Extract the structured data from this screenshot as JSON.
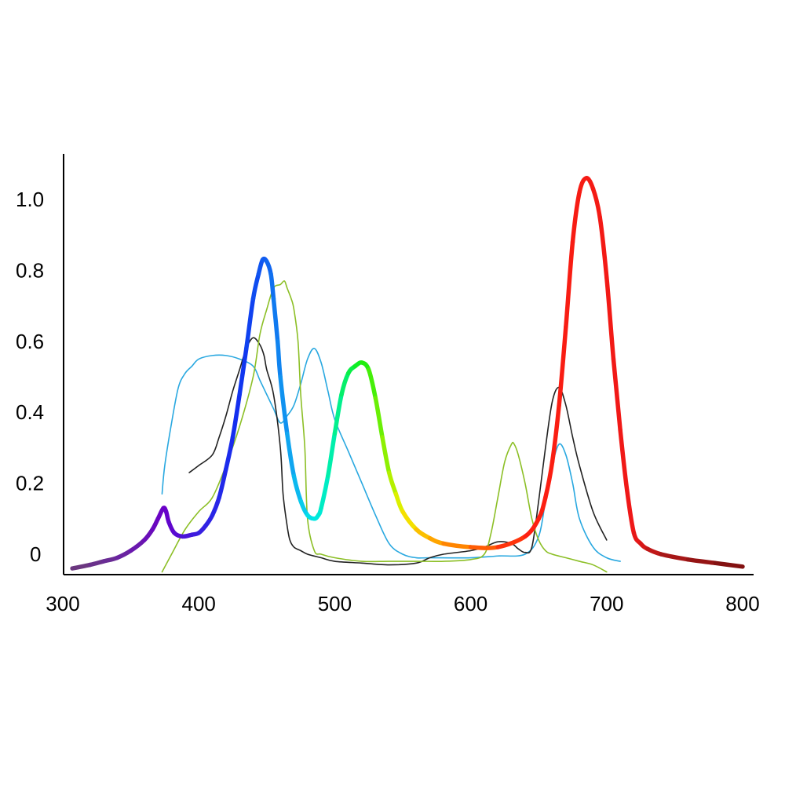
{
  "chart_data": {
    "type": "line",
    "title": "",
    "xlabel": "",
    "ylabel": "",
    "xlim": [
      300,
      800
    ],
    "ylim": [
      -0.05,
      1.12
    ],
    "x_ticks": [
      300,
      400,
      500,
      600,
      700,
      800
    ],
    "x_tick_labels": [
      "300",
      "400",
      "500",
      "600",
      "700",
      "800"
    ],
    "y_ticks": [
      0,
      0.2,
      0.4,
      0.6,
      0.8,
      1.0
    ],
    "y_tick_labels": [
      "0",
      "0.2",
      "0.4",
      "0.6",
      "0.8",
      "1.0"
    ],
    "grid": false,
    "legend": "none",
    "spectrum_colors": [
      {
        "x": 307,
        "color": "#6b3a7a"
      },
      {
        "x": 340,
        "color": "#6a2a9a"
      },
      {
        "x": 375,
        "color": "#6a00c8"
      },
      {
        "x": 400,
        "color": "#3a1ee0"
      },
      {
        "x": 430,
        "color": "#1030f0"
      },
      {
        "x": 450,
        "color": "#1060f0"
      },
      {
        "x": 470,
        "color": "#10b0f0"
      },
      {
        "x": 485,
        "color": "#00e8e8"
      },
      {
        "x": 500,
        "color": "#00f0a0"
      },
      {
        "x": 520,
        "color": "#10ee10"
      },
      {
        "x": 540,
        "color": "#a0f000"
      },
      {
        "x": 550,
        "color": "#f0f000"
      },
      {
        "x": 570,
        "color": "#ffb000"
      },
      {
        "x": 600,
        "color": "#ff7000"
      },
      {
        "x": 640,
        "color": "#ff2010"
      },
      {
        "x": 720,
        "color": "#ee1818"
      },
      {
        "x": 740,
        "color": "#b01818"
      },
      {
        "x": 800,
        "color": "#7a1010"
      }
    ],
    "series": [
      {
        "color": "#29a8e0",
        "x": [
          373,
          375,
          380,
          385,
          390,
          395,
          400,
          410,
          420,
          430,
          440,
          445,
          450,
          455,
          460,
          465,
          470,
          475,
          480,
          485,
          490,
          495,
          500,
          510,
          520,
          530,
          540,
          550,
          560,
          570,
          600,
          620,
          640,
          650,
          655,
          660,
          665,
          670,
          675,
          680,
          690,
          700,
          710
        ],
        "y": [
          0.17,
          0.25,
          0.37,
          0.47,
          0.51,
          0.53,
          0.55,
          0.56,
          0.56,
          0.55,
          0.53,
          0.49,
          0.45,
          0.41,
          0.37,
          0.39,
          0.42,
          0.48,
          0.55,
          0.58,
          0.54,
          0.46,
          0.38,
          0.29,
          0.2,
          0.11,
          0.03,
          0.0,
          -0.01,
          -0.01,
          -0.01,
          -0.005,
          0.0,
          0.05,
          0.15,
          0.25,
          0.31,
          0.28,
          0.2,
          0.1,
          0.02,
          -0.01,
          -0.02
        ]
      },
      {
        "color": "#222222",
        "x": [
          393,
          400,
          410,
          415,
          420,
          425,
          430,
          435,
          440,
          445,
          448,
          450,
          455,
          460,
          462,
          465,
          467,
          470,
          475,
          480,
          490,
          500,
          520,
          540,
          560,
          570,
          580,
          600,
          610,
          620,
          630,
          635,
          640,
          645,
          650,
          655,
          660,
          665,
          670,
          675,
          680,
          690,
          700
        ],
        "y": [
          0.23,
          0.25,
          0.28,
          0.33,
          0.39,
          0.46,
          0.52,
          0.58,
          0.61,
          0.59,
          0.56,
          0.52,
          0.45,
          0.3,
          0.17,
          0.08,
          0.04,
          0.02,
          0.01,
          0.0,
          -0.01,
          -0.02,
          -0.025,
          -0.03,
          -0.025,
          -0.01,
          0.0,
          0.01,
          0.02,
          0.035,
          0.03,
          0.015,
          0.005,
          0.02,
          0.15,
          0.3,
          0.43,
          0.47,
          0.42,
          0.33,
          0.25,
          0.12,
          0.04
        ]
      },
      {
        "color": "#8cbf26",
        "x": [
          373,
          380,
          390,
          400,
          410,
          420,
          430,
          440,
          445,
          450,
          455,
          460,
          463,
          465,
          468,
          470,
          473,
          475,
          478,
          480,
          485,
          490,
          500,
          520,
          540,
          560,
          580,
          600,
          610,
          615,
          620,
          625,
          630,
          632,
          635,
          640,
          645,
          650,
          655,
          660,
          670,
          680,
          690,
          700
        ],
        "y": [
          -0.05,
          0.0,
          0.07,
          0.12,
          0.16,
          0.25,
          0.36,
          0.5,
          0.62,
          0.69,
          0.75,
          0.76,
          0.77,
          0.75,
          0.72,
          0.69,
          0.6,
          0.45,
          0.3,
          0.1,
          0.01,
          0.0,
          -0.01,
          -0.02,
          -0.02,
          -0.02,
          -0.02,
          -0.015,
          0.0,
          0.06,
          0.16,
          0.26,
          0.31,
          0.31,
          0.28,
          0.2,
          0.1,
          0.04,
          0.01,
          0.0,
          -0.01,
          -0.02,
          -0.03,
          -0.05
        ]
      }
    ],
    "spectrum_series": {
      "x": [
        307,
        320,
        330,
        340,
        350,
        360,
        366,
        370,
        374,
        376,
        378,
        382,
        388,
        395,
        400,
        405,
        410,
        415,
        420,
        425,
        430,
        435,
        440,
        444,
        447,
        450,
        453,
        455,
        458,
        460,
        465,
        470,
        475,
        480,
        485,
        488,
        490,
        495,
        500,
        505,
        510,
        515,
        520,
        525,
        530,
        535,
        540,
        545,
        550,
        560,
        570,
        580,
        600,
        620,
        640,
        650,
        655,
        660,
        665,
        670,
        675,
        680,
        685,
        690,
        695,
        700,
        705,
        710,
        715,
        720,
        725,
        730,
        740,
        760,
        780,
        800
      ],
      "y": [
        -0.04,
        -0.03,
        -0.02,
        -0.01,
        0.01,
        0.04,
        0.07,
        0.1,
        0.13,
        0.12,
        0.09,
        0.06,
        0.05,
        0.055,
        0.06,
        0.08,
        0.11,
        0.16,
        0.24,
        0.33,
        0.45,
        0.58,
        0.72,
        0.79,
        0.83,
        0.825,
        0.79,
        0.72,
        0.6,
        0.5,
        0.34,
        0.22,
        0.15,
        0.11,
        0.1,
        0.11,
        0.13,
        0.22,
        0.34,
        0.45,
        0.51,
        0.53,
        0.54,
        0.52,
        0.44,
        0.33,
        0.23,
        0.17,
        0.12,
        0.07,
        0.045,
        0.03,
        0.02,
        0.02,
        0.05,
        0.1,
        0.16,
        0.26,
        0.42,
        0.64,
        0.88,
        1.02,
        1.06,
        1.03,
        0.95,
        0.78,
        0.55,
        0.35,
        0.18,
        0.06,
        0.03,
        0.015,
        0.0,
        -0.015,
        -0.025,
        -0.035
      ]
    }
  }
}
